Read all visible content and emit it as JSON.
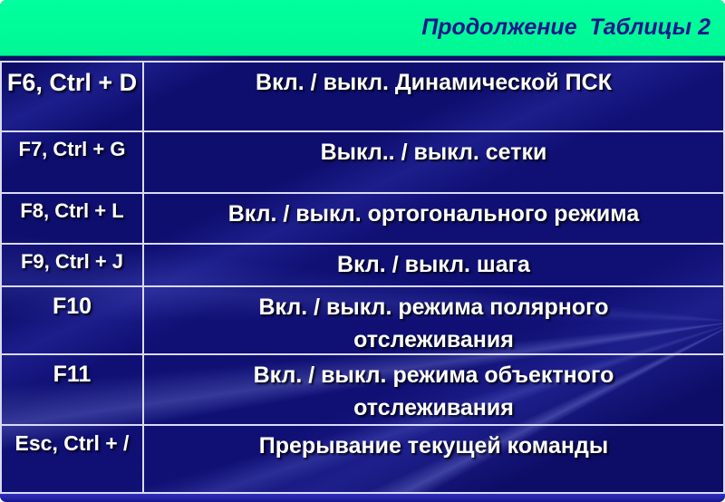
{
  "slide": {
    "title": "Продолжение  Таблицы 2",
    "colors": {
      "title_bg": "#00FF99",
      "title_text": "#17178C",
      "slide_bg": "#11117E",
      "grid_line": "#DADAF0",
      "cell_text": "#FFFFFF",
      "footer_band": "#2424A8"
    },
    "table": {
      "rows": [
        {
          "key": "F6, Ctrl + D",
          "action": "Вкл. / выкл. Динамической ПСК"
        },
        {
          "key": "F7, Ctrl + G",
          "action": "Выкл.. / выкл. сетки"
        },
        {
          "key": "F8, Ctrl + L",
          "action": "Вкл. / выкл. ортогонального режима"
        },
        {
          "key": "F9, Ctrl + J",
          "action": "Вкл. / выкл. шага"
        },
        {
          "key": "F10",
          "action": "Вкл. / выкл. режима полярного отслеживания"
        },
        {
          "key": "F11",
          "action": "Вкл. / выкл. режима объектного отслеживания"
        },
        {
          "key": "Esc, Ctrl + /",
          "action": "Прерывание текущей команды"
        }
      ]
    }
  }
}
